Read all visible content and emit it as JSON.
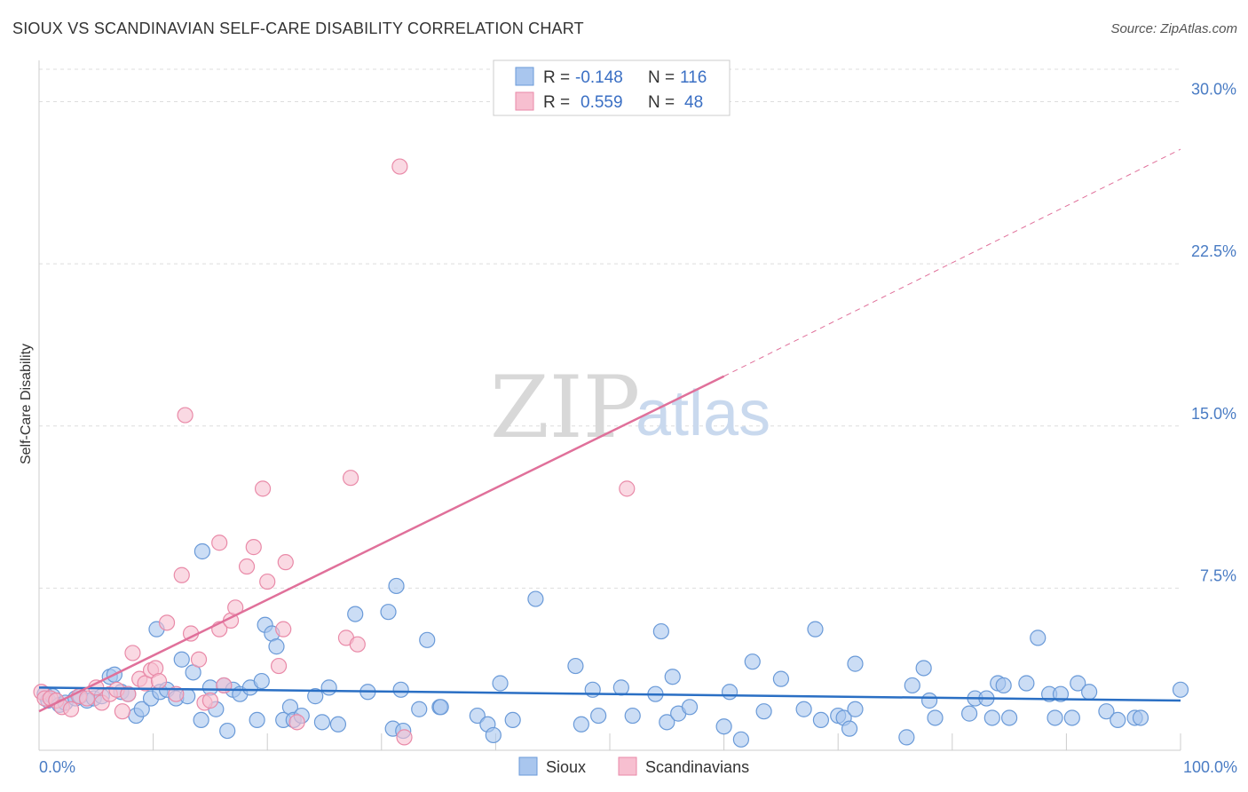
{
  "title": "SIOUX VS SCANDINAVIAN SELF-CARE DISABILITY CORRELATION CHART",
  "source": "Source: ZipAtlas.com",
  "watermark": {
    "zip": "ZIP",
    "atlas": "atlas"
  },
  "legend": {
    "rows": [
      {
        "r_label": "R =",
        "r_value": "-0.148",
        "n_label": "N =",
        "n_value": "116"
      },
      {
        "r_label": "R =",
        "r_value": "0.559",
        "n_label": "N =",
        "n_value": "48"
      }
    ]
  },
  "bottom_legend": [
    "Sioux",
    "Scandinavians"
  ],
  "colors": {
    "sioux_fill": "#a9c6ee",
    "sioux_stroke": "#6a9ad8",
    "sioux_line": "#2a6fc4",
    "scand_fill": "#f7bfd0",
    "scand_stroke": "#e98aa8",
    "scand_line": "#e0709a",
    "grid": "#dddddd",
    "tick_label": "#4a7cc4"
  },
  "chart_data": {
    "type": "scatter",
    "title": "SIOUX VS SCANDINAVIAN SELF-CARE DISABILITY CORRELATION CHART",
    "xlabel": "",
    "ylabel": "Self-Care Disability",
    "xlim": [
      0,
      100
    ],
    "ylim": [
      0,
      31.5
    ],
    "yticks": [
      {
        "value": 7.5,
        "label": "7.5%"
      },
      {
        "value": 15,
        "label": "15.0%"
      },
      {
        "value": 22.5,
        "label": "22.5%"
      },
      {
        "value": 30,
        "label": "30.0%"
      }
    ],
    "xtick_labels": [
      {
        "value": 0,
        "label": "0.0%"
      },
      {
        "value": 100,
        "label": "100.0%"
      }
    ],
    "grid": true,
    "legend_position": "top-center",
    "series": [
      {
        "name": "Sioux",
        "trend": {
          "x": [
            0,
            100
          ],
          "y": [
            2.9,
            2.3
          ]
        },
        "points": [
          [
            0.5,
            2.6
          ],
          [
            0.8,
            2.3
          ],
          [
            1.2,
            2.5
          ],
          [
            1.8,
            2.1
          ],
          [
            2.3,
            2.2
          ],
          [
            3.2,
            2.4
          ],
          [
            3.6,
            2.5
          ],
          [
            4.2,
            2.3
          ],
          [
            4.8,
            2.4
          ],
          [
            5.5,
            2.5
          ],
          [
            6.2,
            3.4
          ],
          [
            6.6,
            3.5
          ],
          [
            7.2,
            2.7
          ],
          [
            7.8,
            2.6
          ],
          [
            8.5,
            1.6
          ],
          [
            9.0,
            1.9
          ],
          [
            9.8,
            2.4
          ],
          [
            10.3,
            5.6
          ],
          [
            10.6,
            2.7
          ],
          [
            11.2,
            2.8
          ],
          [
            12.0,
            2.4
          ],
          [
            12.5,
            4.2
          ],
          [
            13.0,
            2.5
          ],
          [
            13.5,
            3.6
          ],
          [
            14.2,
            1.4
          ],
          [
            14.3,
            9.2
          ],
          [
            15.0,
            2.9
          ],
          [
            15.5,
            1.9
          ],
          [
            16.2,
            3.0
          ],
          [
            16.5,
            0.9
          ],
          [
            17.0,
            2.8
          ],
          [
            17.6,
            2.6
          ],
          [
            18.5,
            2.9
          ],
          [
            19.1,
            1.4
          ],
          [
            19.5,
            3.2
          ],
          [
            19.8,
            5.8
          ],
          [
            20.4,
            5.4
          ],
          [
            20.8,
            4.8
          ],
          [
            21.4,
            1.4
          ],
          [
            22.0,
            2.0
          ],
          [
            22.3,
            1.4
          ],
          [
            23.0,
            1.6
          ],
          [
            24.2,
            2.5
          ],
          [
            24.8,
            1.3
          ],
          [
            25.4,
            2.9
          ],
          [
            26.2,
            1.2
          ],
          [
            27.7,
            6.3
          ],
          [
            28.8,
            2.7
          ],
          [
            30.6,
            6.4
          ],
          [
            31.3,
            7.6
          ],
          [
            31.7,
            2.8
          ],
          [
            31.0,
            1.0
          ],
          [
            31.9,
            0.9
          ],
          [
            33.3,
            1.9
          ],
          [
            34.0,
            5.1
          ],
          [
            35.1,
            2.0
          ],
          [
            35.2,
            2.0
          ],
          [
            38.4,
            1.6
          ],
          [
            39.3,
            1.2
          ],
          [
            39.8,
            0.7
          ],
          [
            40.4,
            3.1
          ],
          [
            41.5,
            1.4
          ],
          [
            43.5,
            7.0
          ],
          [
            47.0,
            3.9
          ],
          [
            47.5,
            1.2
          ],
          [
            48.5,
            2.8
          ],
          [
            49.0,
            1.6
          ],
          [
            51.0,
            2.9
          ],
          [
            52.0,
            1.6
          ],
          [
            54.0,
            2.6
          ],
          [
            54.5,
            5.5
          ],
          [
            55.0,
            1.3
          ],
          [
            55.5,
            3.4
          ],
          [
            56.0,
            1.7
          ],
          [
            57.0,
            2.0
          ],
          [
            60.0,
            1.1
          ],
          [
            60.5,
            2.7
          ],
          [
            61.5,
            0.5
          ],
          [
            62.5,
            4.1
          ],
          [
            63.5,
            1.8
          ],
          [
            65.0,
            3.3
          ],
          [
            67.0,
            1.9
          ],
          [
            68.0,
            5.6
          ],
          [
            68.5,
            1.4
          ],
          [
            70.0,
            1.6
          ],
          [
            70.5,
            1.5
          ],
          [
            71.0,
            1.0
          ],
          [
            71.5,
            1.9
          ],
          [
            71.5,
            4.0
          ],
          [
            76.0,
            0.6
          ],
          [
            76.5,
            3.0
          ],
          [
            77.5,
            3.8
          ],
          [
            78.0,
            2.3
          ],
          [
            78.5,
            1.5
          ],
          [
            81.5,
            1.7
          ],
          [
            82.0,
            2.4
          ],
          [
            83.0,
            2.4
          ],
          [
            83.5,
            1.5
          ],
          [
            84.0,
            3.1
          ],
          [
            84.5,
            3.0
          ],
          [
            85.0,
            1.5
          ],
          [
            86.5,
            3.1
          ],
          [
            87.5,
            5.2
          ],
          [
            88.5,
            2.6
          ],
          [
            89.0,
            1.5
          ],
          [
            89.5,
            2.6
          ],
          [
            90.5,
            1.5
          ],
          [
            91.0,
            3.1
          ],
          [
            92.0,
            2.7
          ],
          [
            93.5,
            1.8
          ],
          [
            94.5,
            1.4
          ],
          [
            96.0,
            1.5
          ],
          [
            96.5,
            1.5
          ],
          [
            100.0,
            2.8
          ]
        ]
      },
      {
        "name": "Scandinavians",
        "trend": {
          "x": [
            0,
            60
          ],
          "y": [
            1.8,
            17.3
          ]
        },
        "trend_dashed": {
          "x": [
            60,
            100
          ],
          "y": [
            17.3,
            27.8
          ]
        },
        "points": [
          [
            0.2,
            2.7
          ],
          [
            0.5,
            2.4
          ],
          [
            1.0,
            2.4
          ],
          [
            1.5,
            2.3
          ],
          [
            2.0,
            2.0
          ],
          [
            2.8,
            1.9
          ],
          [
            3.5,
            2.5
          ],
          [
            4.2,
            2.4
          ],
          [
            5.0,
            2.9
          ],
          [
            5.5,
            2.2
          ],
          [
            6.2,
            2.6
          ],
          [
            6.8,
            2.8
          ],
          [
            7.3,
            1.8
          ],
          [
            7.8,
            2.6
          ],
          [
            8.2,
            4.5
          ],
          [
            8.8,
            3.3
          ],
          [
            9.3,
            3.1
          ],
          [
            9.8,
            3.7
          ],
          [
            10.2,
            3.8
          ],
          [
            10.5,
            3.2
          ],
          [
            11.2,
            5.9
          ],
          [
            12.0,
            2.6
          ],
          [
            12.5,
            8.1
          ],
          [
            12.8,
            15.5
          ],
          [
            13.3,
            5.4
          ],
          [
            14.0,
            4.2
          ],
          [
            14.5,
            2.2
          ],
          [
            15.0,
            2.3
          ],
          [
            15.8,
            5.6
          ],
          [
            15.8,
            9.6
          ],
          [
            16.2,
            3.0
          ],
          [
            16.8,
            6.0
          ],
          [
            17.2,
            6.6
          ],
          [
            18.2,
            8.5
          ],
          [
            18.8,
            9.4
          ],
          [
            19.6,
            12.1
          ],
          [
            20.0,
            7.8
          ],
          [
            21.0,
            3.9
          ],
          [
            21.4,
            5.6
          ],
          [
            21.6,
            8.7
          ],
          [
            22.6,
            1.3
          ],
          [
            26.9,
            5.2
          ],
          [
            27.3,
            12.6
          ],
          [
            27.9,
            4.9
          ],
          [
            31.6,
            27.0
          ],
          [
            32.0,
            0.6
          ],
          [
            51.5,
            12.1
          ]
        ]
      }
    ]
  }
}
